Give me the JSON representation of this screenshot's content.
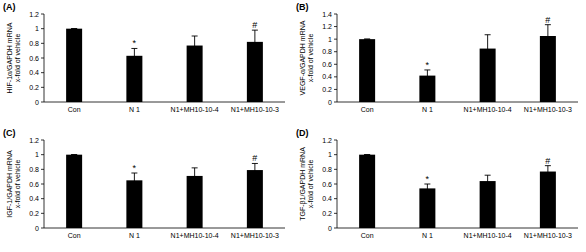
{
  "chart_data": [
    {
      "type": "bar",
      "panel": "(A)",
      "y_label": [
        "HIF-1α/GAPDH mRNA",
        "x-fold of vehicle"
      ],
      "categories": [
        "Con",
        "N 1",
        "N1+MH10-10-4",
        "N1+MH10-10-3"
      ],
      "values": [
        1.0,
        0.63,
        0.77,
        0.82
      ],
      "errors": [
        0,
        0.1,
        0.13,
        0.16
      ],
      "color": "#000000",
      "ylim": [
        0,
        1.2
      ],
      "yticks": [
        0,
        0.2,
        0.4,
        0.6,
        0.8,
        1,
        1.2
      ],
      "grid": false,
      "annotations": [
        {
          "category": "N 1",
          "text": "*"
        },
        {
          "category": "N1+MH10-10-3",
          "text": "#"
        }
      ]
    },
    {
      "type": "bar",
      "panel": "(B)",
      "y_label": [
        "VEGF-α/GAPDH mRNA",
        "x-fold of vehicle"
      ],
      "categories": [
        "Con",
        "N 1",
        "N1+MH10-10-4",
        "N1+MH10-10-3"
      ],
      "values": [
        1.0,
        0.42,
        0.85,
        1.05
      ],
      "errors": [
        0,
        0.09,
        0.22,
        0.18
      ],
      "color": "#000000",
      "ylim": [
        0,
        1.4
      ],
      "yticks": [
        0,
        0.2,
        0.4,
        0.6,
        0.8,
        1,
        1.2,
        1.4
      ],
      "grid": false,
      "annotations": [
        {
          "category": "N 1",
          "text": "*"
        },
        {
          "category": "N1+MH10-10-3",
          "text": "#"
        }
      ]
    },
    {
      "type": "bar",
      "panel": "(C)",
      "y_label": [
        "IGF-1/GAPDH mRNA",
        "x-fold of vehicle"
      ],
      "categories": [
        "Con",
        "N 1",
        "N1+MH10-10-4",
        "N1+MH10-10-3"
      ],
      "values": [
        1.0,
        0.65,
        0.71,
        0.79
      ],
      "errors": [
        0,
        0.1,
        0.11,
        0.09
      ],
      "color": "#000000",
      "ylim": [
        0,
        1.2
      ],
      "yticks": [
        0,
        0.2,
        0.4,
        0.6,
        0.8,
        1,
        1.2
      ],
      "grid": false,
      "annotations": [
        {
          "category": "N 1",
          "text": "*"
        },
        {
          "category": "N1+MH10-10-3",
          "text": "#"
        }
      ]
    },
    {
      "type": "bar",
      "panel": "(D)",
      "y_label": [
        "TGF-β1/GAPDH mRNA",
        "x-fold of vehicle"
      ],
      "categories": [
        "Con",
        "N 1",
        "N1+MH10-10-4",
        "N1+MH10-10-3"
      ],
      "values": [
        1.0,
        0.54,
        0.64,
        0.77
      ],
      "errors": [
        0,
        0.06,
        0.08,
        0.08
      ],
      "color": "#000000",
      "ylim": [
        0,
        1.2
      ],
      "yticks": [
        0,
        0.2,
        0.4,
        0.6,
        0.8,
        1,
        1.2
      ],
      "grid": false,
      "annotations": [
        {
          "category": "N 1",
          "text": "*"
        },
        {
          "category": "N1+MH10-10-3",
          "text": "#"
        }
      ]
    }
  ]
}
